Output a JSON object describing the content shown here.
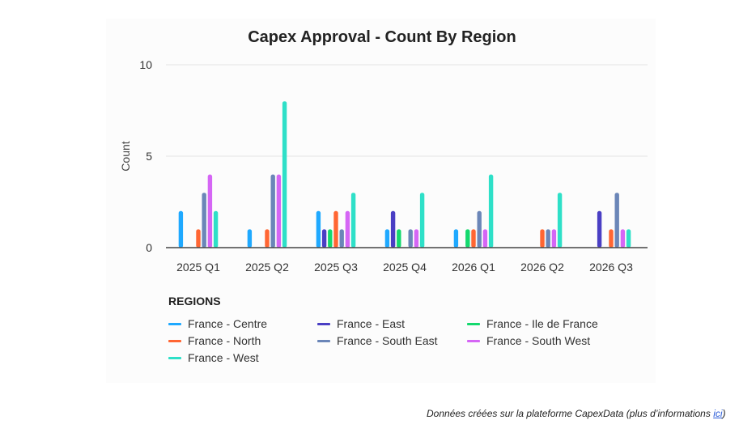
{
  "chart_data": {
    "type": "bar",
    "title": "Capex Approval - Count By Region",
    "xlabel": "",
    "ylabel": "Count",
    "ylim": [
      0,
      10
    ],
    "yticks": [
      0,
      5,
      10
    ],
    "grid": true,
    "legend_title": "REGIONS",
    "legend_position": "bottom",
    "categories": [
      "2025 Q1",
      "2025 Q2",
      "2025 Q3",
      "2025 Q4",
      "2026 Q1",
      "2026 Q2",
      "2026 Q3"
    ],
    "series": [
      {
        "name": "France - Centre",
        "color": "#1fa9ff",
        "values": [
          2,
          1,
          2,
          1,
          1,
          0,
          0
        ]
      },
      {
        "name": "France - East",
        "color": "#4a3fc4",
        "values": [
          0,
          0,
          1,
          2,
          0,
          0,
          2
        ]
      },
      {
        "name": "France - Ile de France",
        "color": "#14d96e",
        "values": [
          0,
          0,
          1,
          1,
          1,
          0,
          0
        ]
      },
      {
        "name": "France - North",
        "color": "#ff6633",
        "values": [
          1,
          1,
          2,
          0,
          1,
          1,
          1
        ]
      },
      {
        "name": "France - South East",
        "color": "#6b86b8",
        "values": [
          3,
          4,
          1,
          1,
          2,
          1,
          3
        ]
      },
      {
        "name": "France - South West",
        "color": "#d566f5",
        "values": [
          4,
          4,
          2,
          1,
          1,
          1,
          1
        ]
      },
      {
        "name": "France - West",
        "color": "#2ee0c8",
        "values": [
          2,
          8,
          3,
          3,
          4,
          3,
          1
        ]
      }
    ]
  },
  "footer": {
    "text": "Données créées sur la plateforme CapexData (plus d’informations ",
    "link": "ici",
    "close": ")"
  }
}
